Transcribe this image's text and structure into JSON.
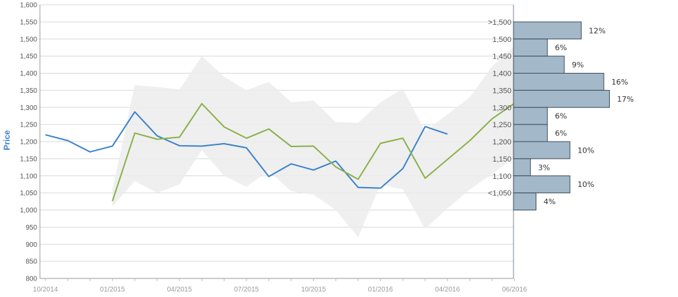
{
  "chart_data": {
    "type": "line",
    "ylabel": "Price",
    "ylim": [
      800,
      1600
    ],
    "yticks": [
      "800",
      "850",
      "900",
      "950",
      "1,000",
      "1,050",
      "1,100",
      "1,150",
      "1,200",
      "1,250",
      "1,300",
      "1,350",
      "1,400",
      "1,450",
      "1,500",
      "1,550",
      "1,600"
    ],
    "x_tick_labels": [
      {
        "label": "10/2014",
        "month": 0
      },
      {
        "label": "01/2015",
        "month": 3
      },
      {
        "label": "04/2015",
        "month": 6
      },
      {
        "label": "07/2015",
        "month": 9
      },
      {
        "label": "10/2015",
        "month": 12
      },
      {
        "label": "01/2016",
        "month": 15
      },
      {
        "label": "04/2016",
        "month": 18
      },
      {
        "label": "06/2016",
        "month": 21
      }
    ],
    "series": [
      {
        "color": "#3a82cc",
        "points": [
          [
            0,
            1220
          ],
          [
            1,
            1203
          ],
          [
            2,
            1170
          ],
          [
            3,
            1187
          ],
          [
            4,
            1287
          ],
          [
            5,
            1217
          ],
          [
            6,
            1188
          ],
          [
            7,
            1187
          ],
          [
            8,
            1194
          ],
          [
            9,
            1182
          ],
          [
            10,
            1098
          ],
          [
            11,
            1135
          ],
          [
            12,
            1117
          ],
          [
            13,
            1143
          ],
          [
            14,
            1066
          ],
          [
            15,
            1064
          ],
          [
            16,
            1121
          ],
          [
            17,
            1244
          ],
          [
            18,
            1222
          ]
        ]
      },
      {
        "color": "#8ab04a",
        "points": [
          [
            3,
            1026
          ],
          [
            4,
            1225
          ],
          [
            5,
            1207
          ],
          [
            6,
            1213
          ],
          [
            7,
            1311
          ],
          [
            8,
            1243
          ],
          [
            9,
            1210
          ],
          [
            10,
            1237
          ],
          [
            11,
            1186
          ],
          [
            12,
            1187
          ],
          [
            13,
            1126
          ],
          [
            14,
            1090
          ],
          [
            15,
            1195
          ],
          [
            16,
            1210
          ],
          [
            17,
            1093
          ],
          [
            18,
            1148
          ],
          [
            19,
            1203
          ],
          [
            20,
            1267
          ],
          [
            21,
            1312
          ]
        ]
      }
    ],
    "band": {
      "color": "#ececec",
      "upper": [
        [
          3,
          1060
        ],
        [
          4,
          1365
        ],
        [
          5,
          1360
        ],
        [
          6,
          1352
        ],
        [
          7,
          1450
        ],
        [
          8,
          1390
        ],
        [
          9,
          1350
        ],
        [
          10,
          1375
        ],
        [
          11,
          1315
        ],
        [
          12,
          1320
        ],
        [
          13,
          1257
        ],
        [
          14,
          1255
        ],
        [
          15,
          1315
        ],
        [
          16,
          1355
        ],
        [
          17,
          1230
        ],
        [
          18,
          1280
        ],
        [
          19,
          1330
        ],
        [
          20,
          1420
        ],
        [
          21,
          1480
        ]
      ],
      "lower": [
        [
          21,
          1155
        ],
        [
          20,
          1105
        ],
        [
          19,
          1060
        ],
        [
          18,
          1005
        ],
        [
          17,
          945
        ],
        [
          16,
          1060
        ],
        [
          15,
          1075
        ],
        [
          14,
          920
        ],
        [
          13,
          1000
        ],
        [
          12,
          1045
        ],
        [
          11,
          1055
        ],
        [
          10,
          1115
        ],
        [
          9,
          1068
        ],
        [
          8,
          1100
        ],
        [
          7,
          1175
        ],
        [
          6,
          1075
        ],
        [
          5,
          1050
        ],
        [
          4,
          1085
        ],
        [
          3,
          1010
        ]
      ]
    },
    "distribution": {
      "type": "bar",
      "color": "#a3b8c8",
      "bins": [
        {
          "label": ">1,500",
          "y_low": 1500,
          "y_high": 1550,
          "percent": 12,
          "text": "12%"
        },
        {
          "label": "1,500",
          "y_low": 1450,
          "y_high": 1500,
          "percent": 6,
          "text": "6%"
        },
        {
          "label": "1,450",
          "y_low": 1400,
          "y_high": 1450,
          "percent": 9,
          "text": "9%"
        },
        {
          "label": "1,400",
          "y_low": 1350,
          "y_high": 1400,
          "percent": 16,
          "text": "16%"
        },
        {
          "label": "1,350",
          "y_low": 1300,
          "y_high": 1350,
          "percent": 17,
          "text": "17%"
        },
        {
          "label": "1,300",
          "y_low": 1250,
          "y_high": 1300,
          "percent": 6,
          "text": "6%"
        },
        {
          "label": "1,250",
          "y_low": 1200,
          "y_high": 1250,
          "percent": 6,
          "text": "6%"
        },
        {
          "label": "1,200",
          "y_low": 1150,
          "y_high": 1200,
          "percent": 10,
          "text": "10%"
        },
        {
          "label": "1,150",
          "y_low": 1100,
          "y_high": 1150,
          "percent": 3,
          "text": "3%"
        },
        {
          "label": "1,100",
          "y_low": 1050,
          "y_high": 1100,
          "percent": 10,
          "text": "10%"
        },
        {
          "label": "<1,050",
          "y_low": 1000,
          "y_high": 1050,
          "percent": 4,
          "text": "4%"
        }
      ]
    }
  }
}
